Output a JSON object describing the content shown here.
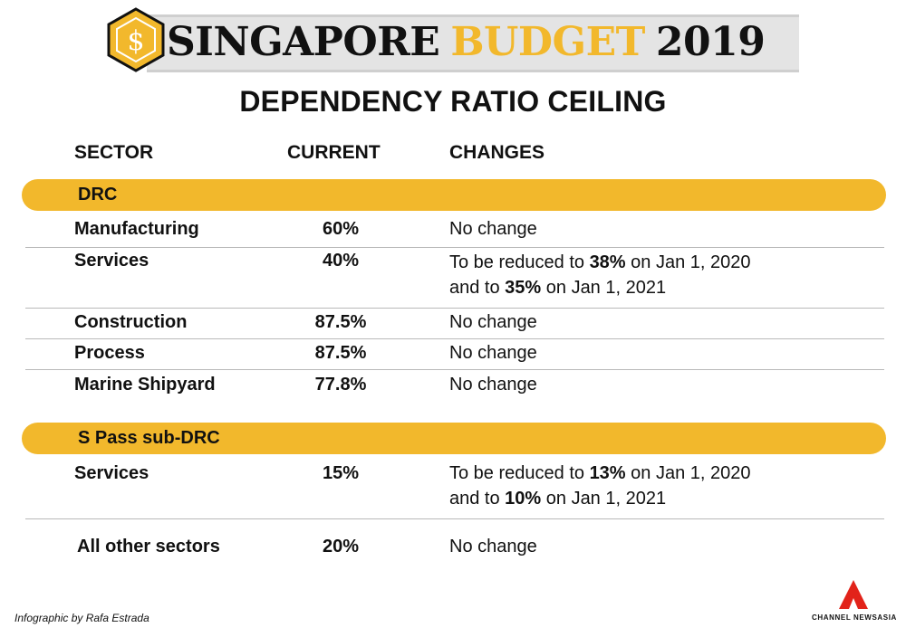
{
  "banner": {
    "word1": "SINGAPORE",
    "word2": "BUDGET",
    "word3": "2019",
    "logo_symbol": "$",
    "logo_icon": "hexagon-dollar-icon",
    "accent_color": "#f2b82c"
  },
  "title": "DEPENDENCY RATIO CEILING",
  "columns": {
    "sector": "SECTOR",
    "current": "CURRENT",
    "changes": "CHANGES"
  },
  "sections": [
    {
      "label": "DRC",
      "rows": [
        {
          "sector": "Manufacturing",
          "current": "60%",
          "change": [
            "No change"
          ]
        },
        {
          "sector": "Services",
          "current": "40%",
          "change": [
            "To be reduced to ",
            "38%",
            " on Jan 1, 2020",
            "and to ",
            "35%",
            " on Jan 1, 2021"
          ]
        },
        {
          "sector": "Construction",
          "current": "87.5%",
          "change": [
            "No change"
          ]
        },
        {
          "sector": "Process",
          "current": "87.5%",
          "change": [
            "No change"
          ]
        },
        {
          "sector": "Marine Shipyard",
          "current": "77.8%",
          "change": [
            "No change"
          ]
        }
      ]
    },
    {
      "label": "S Pass sub-DRC",
      "rows": [
        {
          "sector": "Services",
          "current": "15%",
          "change": [
            "To be reduced to ",
            "13%",
            " on Jan 1, 2020",
            "and to ",
            "10%",
            " on Jan 1, 2021"
          ]
        },
        {
          "sector": "All other sectors",
          "current": "20%",
          "change": [
            "No change"
          ]
        }
      ]
    }
  ],
  "credit": "Infographic by Rafa Estrada",
  "brand": {
    "text": "CHANNEL NEWSASIA",
    "color": "#e2231a"
  }
}
